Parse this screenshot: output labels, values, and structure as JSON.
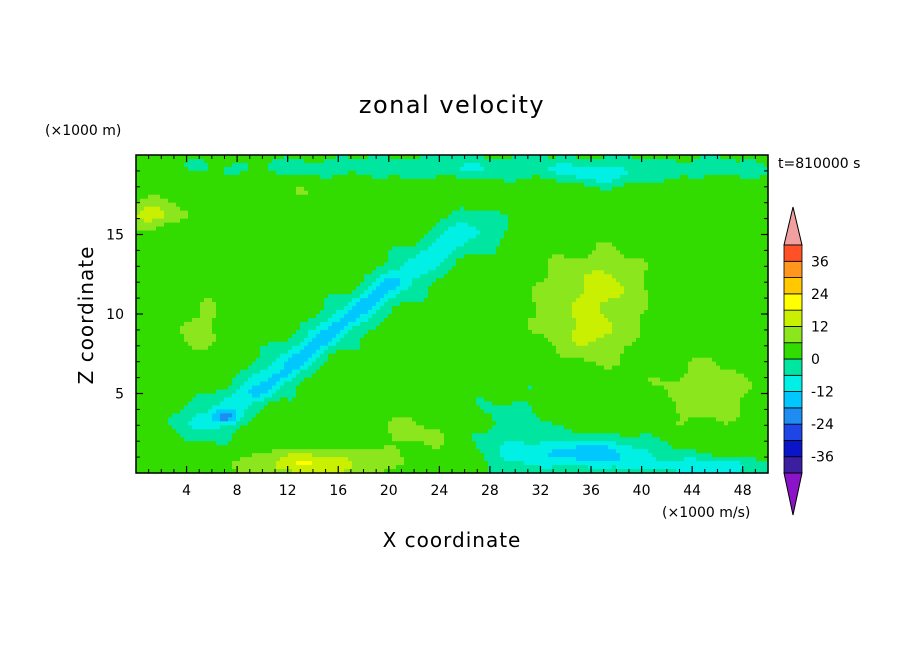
{
  "chart_data": {
    "type": "heatmap",
    "title": "zonal velocity",
    "time_label": "t=810000 s",
    "xlabel": "X coordinate",
    "ylabel": "Z coordinate",
    "x_unit": "(×1000 m/s)",
    "y_unit": "(×1000 m)",
    "xlim": [
      0,
      50
    ],
    "ylim": [
      0,
      20
    ],
    "x_ticks": [
      4,
      8,
      12,
      16,
      20,
      24,
      28,
      32,
      36,
      40,
      44,
      48
    ],
    "y_ticks": [
      5,
      10,
      15
    ],
    "colorbar": {
      "levels": [
        -42,
        -36,
        -30,
        -24,
        -18,
        -12,
        -6,
        0,
        6,
        12,
        18,
        24,
        30,
        36,
        42
      ],
      "tick_labels": [
        -36,
        -24,
        -12,
        0,
        12,
        24,
        36
      ],
      "colors": [
        "#8c14c8",
        "#3c1ea0",
        "#0a14c8",
        "#1e46e6",
        "#1e8cf0",
        "#00c8ff",
        "#00f0e6",
        "#00e6a0",
        "#32dc00",
        "#8ce61e",
        "#c8f000",
        "#ffff00",
        "#ffc800",
        "#ff961e",
        "#ff5028",
        "#f01e1e",
        "#f0a0a0"
      ]
    },
    "field_features": [
      {
        "kind": "background",
        "value": 2
      },
      {
        "kind": "blob",
        "x": 30,
        "y": 19.2,
        "sx": 20,
        "sy": 0.6,
        "value": -8
      },
      {
        "kind": "blob",
        "x": 37,
        "y": 18.6,
        "sx": 3,
        "sy": 0.5,
        "value": -8
      },
      {
        "kind": "blob",
        "x": 12,
        "y": 17.5,
        "sx": 14,
        "sy": 1.0,
        "value": 3
      },
      {
        "kind": "blob",
        "x": 1,
        "y": 16.2,
        "sx": 2.5,
        "sy": 0.8,
        "value": 12
      },
      {
        "kind": "blob",
        "x": 36,
        "y": 10.5,
        "sx": 4.5,
        "sy": 3.5,
        "value": 10
      },
      {
        "kind": "blob",
        "x": 36,
        "y": 8.5,
        "sx": 2.0,
        "sy": 1.0,
        "value": 5
      },
      {
        "kind": "blob",
        "x": 37.5,
        "y": 12,
        "sx": 2.0,
        "sy": 1.5,
        "value": 4
      },
      {
        "kind": "band",
        "x0": 6,
        "y0": 3.3,
        "x1": 26,
        "y1": 15.2,
        "width": 2.6,
        "value": -11
      },
      {
        "kind": "band",
        "x0": 10,
        "y0": 5,
        "x1": 20,
        "y1": 12,
        "width": 1.2,
        "value": -7
      },
      {
        "kind": "blob",
        "x": 7,
        "y": 3.5,
        "sx": 1.0,
        "sy": 0.4,
        "value": -14
      },
      {
        "kind": "blob",
        "x": 14,
        "y": 0.6,
        "sx": 5,
        "sy": 0.8,
        "value": 16
      },
      {
        "kind": "blob",
        "x": 22,
        "y": 2.5,
        "sx": 3.5,
        "sy": 1.8,
        "value": 5
      },
      {
        "kind": "blob",
        "x": 36,
        "y": 1.2,
        "sx": 5,
        "sy": 0.9,
        "value": -18
      },
      {
        "kind": "blob",
        "x": 45,
        "y": 0.4,
        "sx": 5,
        "sy": 0.6,
        "value": -12
      },
      {
        "kind": "blob",
        "x": 30,
        "y": 2.0,
        "sx": 3,
        "sy": 2.5,
        "value": -6
      },
      {
        "kind": "blob",
        "x": 45,
        "y": 5,
        "sx": 4,
        "sy": 2.5,
        "value": 7
      },
      {
        "kind": "blob",
        "x": 5,
        "y": 9,
        "sx": 3,
        "sy": 2.5,
        "value": 5
      }
    ]
  }
}
